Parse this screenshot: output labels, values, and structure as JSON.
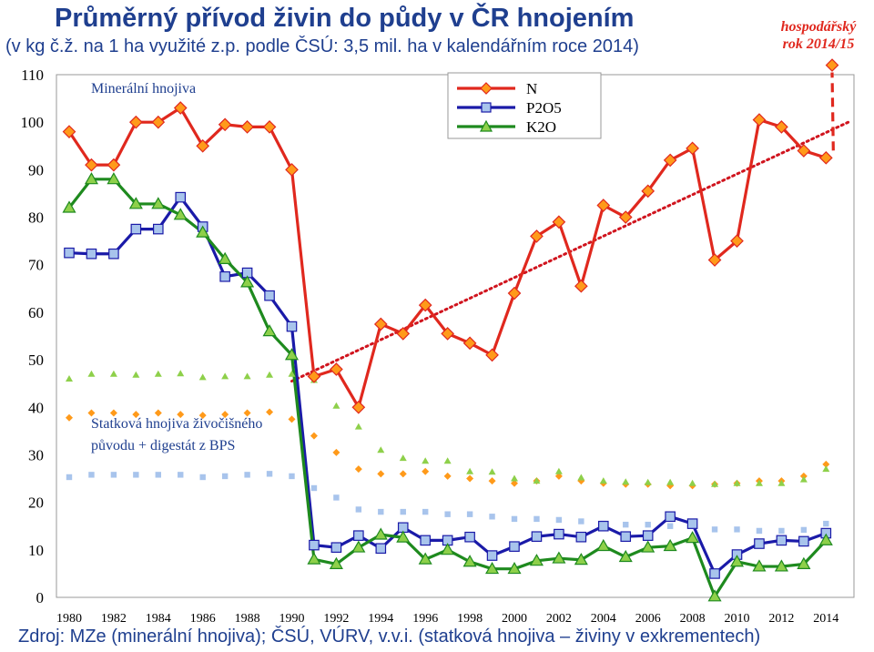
{
  "header": {
    "title": "Průměrný přívod živin do půdy v ČR hnojením",
    "subtitle": "(v kg č.ž. na 1 ha využité z.p. podle ČSÚ: 3,5 mil. ha v kalendářním roce 2014)",
    "marketing_year_line1": "hospodářský",
    "marketing_year_line2": "rok 2014/15"
  },
  "footer": {
    "source": "Zdroj: MZe (minerální hnojiva); ČSÚ, VÚRV, v.v.i. (statková hnojiva – živiny v exkrementech)"
  },
  "chart_data": {
    "type": "line",
    "title": "Průměrný přívod živin do půdy v ČR hnojením",
    "ylim": [
      0,
      110
    ],
    "yticks": [
      0,
      10,
      20,
      30,
      40,
      50,
      60,
      70,
      80,
      90,
      100,
      110
    ],
    "xticks": [
      1980,
      1982,
      1984,
      1986,
      1988,
      1990,
      1992,
      1994,
      1996,
      1998,
      2000,
      2002,
      2004,
      2006,
      2008,
      2010,
      2012,
      2014
    ],
    "x": [
      1980,
      1981,
      1982,
      1983,
      1984,
      1985,
      1986,
      1987,
      1988,
      1989,
      1990,
      1991,
      1992,
      1993,
      1994,
      1995,
      1996,
      1997,
      1998,
      1999,
      2000,
      2001,
      2002,
      2003,
      2004,
      2005,
      2006,
      2007,
      2008,
      2009,
      2010,
      2011,
      2012,
      2013,
      2014
    ],
    "annotations": {
      "mineral": "Minerální hnojiva",
      "manure_line1": "Statková hnojiva živočišného",
      "manure_line2": "původu + digestát z BPS"
    },
    "legend": [
      "N",
      "P2O5",
      "K2O"
    ],
    "colors": {
      "N": "#e0281e",
      "P2O5": "#1a1aa8",
      "K2O": "#1e8a1e",
      "N_fill": "#ff9a1a",
      "P_fill": "#a8c4ec",
      "K_fill": "#8ed04a",
      "trend": "#d0141e"
    },
    "series_mineral": [
      {
        "name": "N",
        "values": [
          98,
          91,
          91,
          100,
          100,
          103,
          95,
          99.5,
          99,
          99,
          90,
          46.5,
          48,
          40,
          57.5,
          55.5,
          61.5,
          55.5,
          53.5,
          51,
          64,
          76,
          79,
          65.5,
          82.5,
          80,
          85.5,
          92,
          94.5,
          71,
          75,
          100.5,
          99,
          94,
          92.5
        ]
      },
      {
        "name": "P2O5",
        "values": [
          72.5,
          72.3,
          72.3,
          77.5,
          77.5,
          84.2,
          78,
          67.5,
          68.3,
          63.5,
          57,
          11,
          10.5,
          13,
          10.3,
          14.7,
          12,
          12,
          12.7,
          8.8,
          10.7,
          12.8,
          13.3,
          12.7,
          15,
          12.8,
          13,
          17,
          15.5,
          5,
          9,
          11.3,
          12,
          11.8,
          13.5
        ]
      },
      {
        "name": "K2O",
        "values": [
          82,
          88,
          88,
          82.8,
          82.8,
          80.5,
          76.8,
          71.2,
          66.3,
          56,
          51,
          8,
          7,
          10.5,
          13.2,
          12.6,
          8,
          10,
          7.5,
          6,
          6,
          7.7,
          8.2,
          7.9,
          10.8,
          8.5,
          10.5,
          10.8,
          12.5,
          0.2,
          7.5,
          6.5,
          6.5,
          7,
          12
        ]
      }
    ],
    "series_manure": [
      {
        "name": "N",
        "values": [
          37.8,
          38.8,
          38.8,
          38.5,
          38.8,
          38.5,
          38.3,
          38.5,
          38.8,
          39,
          37.5,
          34,
          30.5,
          27,
          26,
          26,
          26.5,
          25.5,
          25,
          24.5,
          24,
          24.5,
          25.5,
          24.5,
          24,
          23.8,
          23.8,
          23.5,
          23.5,
          23.8,
          24,
          24.5,
          24.5,
          25.5,
          28
        ]
      },
      {
        "name": "P2O5",
        "values": [
          25.3,
          25.8,
          25.8,
          25.8,
          25.8,
          25.8,
          25.3,
          25.5,
          25.8,
          26,
          25.5,
          23,
          21,
          18.5,
          18,
          18,
          18,
          17.5,
          17.5,
          17,
          16.5,
          16.5,
          16.3,
          16,
          15.5,
          15.3,
          15.3,
          15,
          15,
          14.3,
          14.3,
          14,
          14,
          14.2,
          15.5
        ]
      },
      {
        "name": "K2O",
        "values": [
          46,
          47,
          47,
          46.8,
          47,
          47.1,
          46.3,
          46.5,
          46.5,
          46.8,
          47,
          45.7,
          40.3,
          35.9,
          31,
          29.3,
          28.7,
          28.7,
          26.5,
          26.4,
          25,
          24.5,
          26.5,
          25.2,
          24.5,
          24.3,
          24.2,
          24.2,
          24,
          23.8,
          24,
          24,
          24,
          24.8,
          27
        ]
      }
    ],
    "n_marketing_year_2014_15": 112,
    "n_trend": {
      "from": [
        1990,
        45.5
      ],
      "to": [
        2015,
        100
      ]
    }
  }
}
